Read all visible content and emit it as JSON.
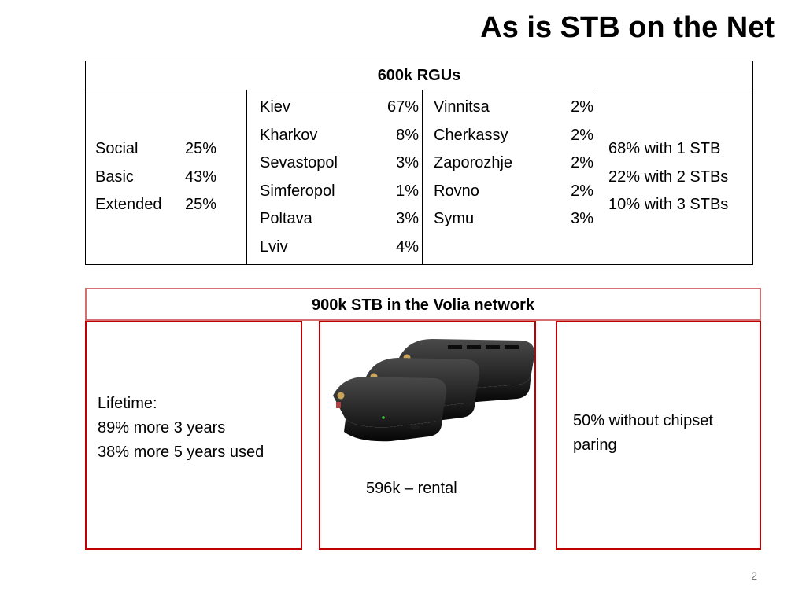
{
  "title": "As is STB on the Net",
  "rgu_table": {
    "header": "600k RGUs",
    "packages": [
      {
        "name": "Social",
        "value": "25%"
      },
      {
        "name": "Basic",
        "value": "43%"
      },
      {
        "name": "Extended",
        "value": "25%"
      }
    ],
    "cities_a": [
      {
        "name": "Kiev",
        "value": "67%"
      },
      {
        "name": "Kharkov",
        "value": "8%"
      },
      {
        "name": "Sevastopol",
        "value": "3%"
      },
      {
        "name": "Simferopol",
        "value": "1%"
      },
      {
        "name": "Poltava",
        "value": "3%"
      },
      {
        "name": "Lviv",
        "value": "4%"
      }
    ],
    "cities_b": [
      {
        "name": "Vinnitsa",
        "value": "2%"
      },
      {
        "name": "Cherkassy",
        "value": "2%"
      },
      {
        "name": "Zaporozhje",
        "value": "2%"
      },
      {
        "name": "Rovno",
        "value": "2%"
      },
      {
        "name": "Symu",
        "value": "3%"
      }
    ],
    "stb_counts": [
      "68% with 1 STB",
      "22% with 2 STBs",
      "10% with 3 STBs"
    ]
  },
  "network": {
    "banner": "900k STB in the Volia network",
    "lifetime": {
      "line1": "Lifetime:",
      "line2": "89% more 3 years",
      "line3": "38% more 5 years used"
    },
    "rental": "596k – rental",
    "chipset": "50% without chipset paring"
  },
  "icons": {
    "stb_image": "set-top-box-stack-icon"
  },
  "colors": {
    "accent": "#c00000",
    "banner_border": "#d66f6f"
  },
  "page_number": "2"
}
